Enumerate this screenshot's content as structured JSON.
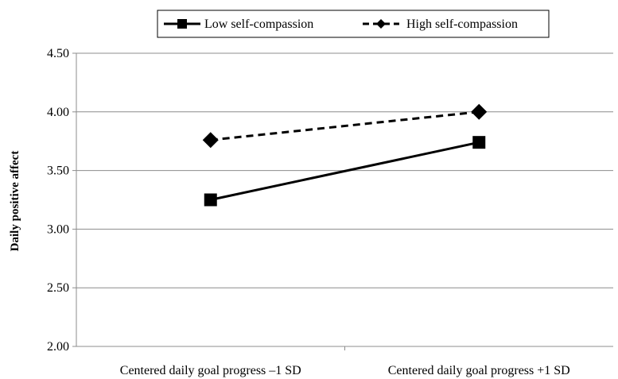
{
  "chart_data": {
    "type": "line",
    "title": "",
    "xlabel": "",
    "ylabel": "Daily positive affect",
    "categories": [
      "Centered daily goal progress –1 SD",
      "Centered daily goal progress +1 SD"
    ],
    "ylim": [
      2.0,
      4.5
    ],
    "yticks": [
      "2.00",
      "2.50",
      "3.00",
      "3.50",
      "4.00",
      "4.50"
    ],
    "ytick_values": [
      2.0,
      2.5,
      3.0,
      3.5,
      4.0,
      4.5
    ],
    "grid": "horizontal",
    "legend_position": "top",
    "series": [
      {
        "name": "Low self-compassion",
        "values": [
          3.25,
          3.74
        ],
        "line_style": "solid",
        "marker": "square",
        "color": "#000000"
      },
      {
        "name": "High self-compassion",
        "values": [
          3.76,
          4.0
        ],
        "line_style": "dashed",
        "marker": "diamond",
        "color": "#000000"
      }
    ]
  }
}
